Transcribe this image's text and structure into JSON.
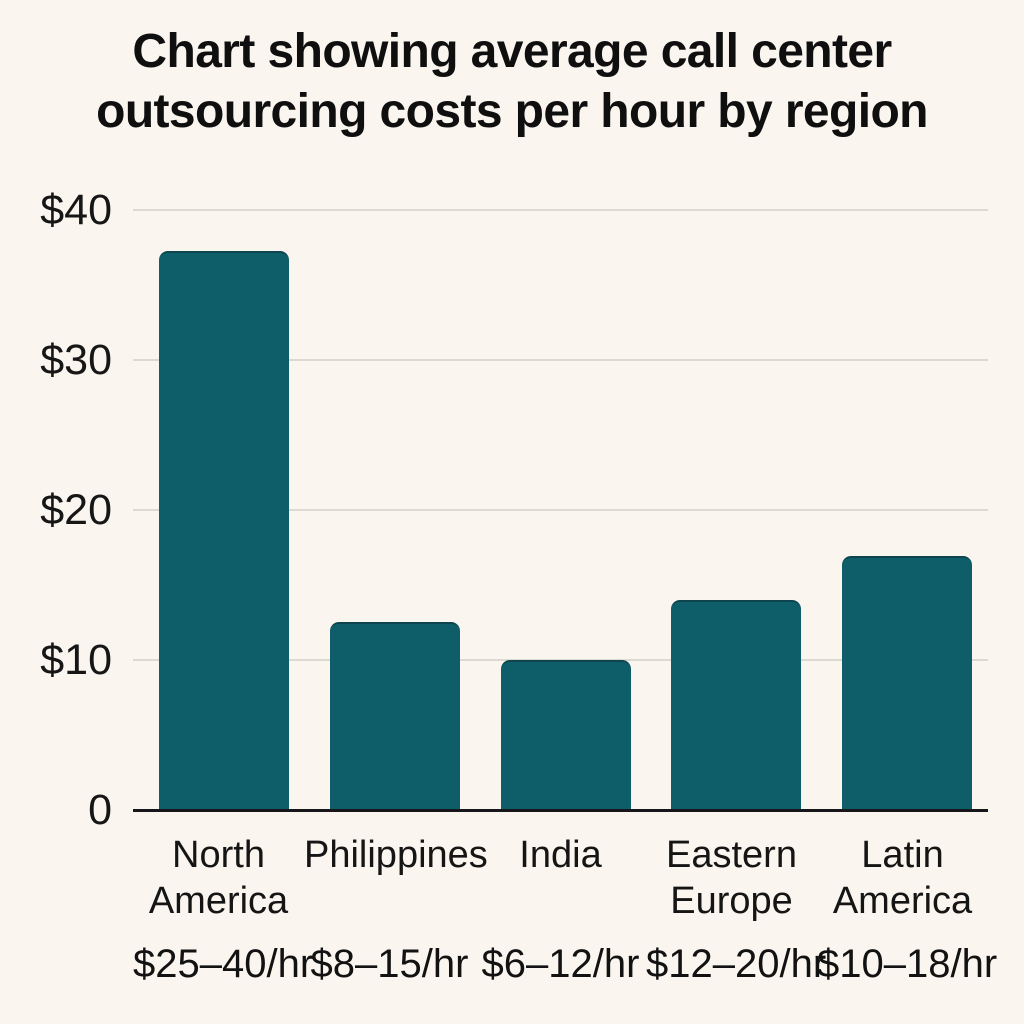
{
  "page": {
    "background_color": "#faf5ef",
    "bar_color": "#0d5e68",
    "gridline_color": "#dcd9d3",
    "axis_color": "#17171b"
  },
  "chart_data": {
    "type": "bar",
    "title": "Chart showing average call center outsourcing costs per hour by region",
    "categories": [
      "North America",
      "Philippines",
      "India",
      "Eastern Europe",
      "Latin America"
    ],
    "values": [
      37.3,
      12.5,
      10,
      14,
      16.9
    ],
    "range_labels": [
      "$25–40/hr",
      "$8–15/hr",
      "$6–12/hr",
      "$12–20/hr",
      "$10–18/hr"
    ],
    "y_ticks": [
      {
        "label": "$40",
        "value": 40
      },
      {
        "label": "$30",
        "value": 30
      },
      {
        "label": "$20",
        "value": 20
      },
      {
        "label": "$10",
        "value": 10
      },
      {
        "label": "0",
        "value": 0
      }
    ],
    "ylim": [
      0,
      40
    ],
    "xlabel": "",
    "ylabel": "",
    "grid": true,
    "legend": false,
    "bar_color": "#0d5e68"
  }
}
